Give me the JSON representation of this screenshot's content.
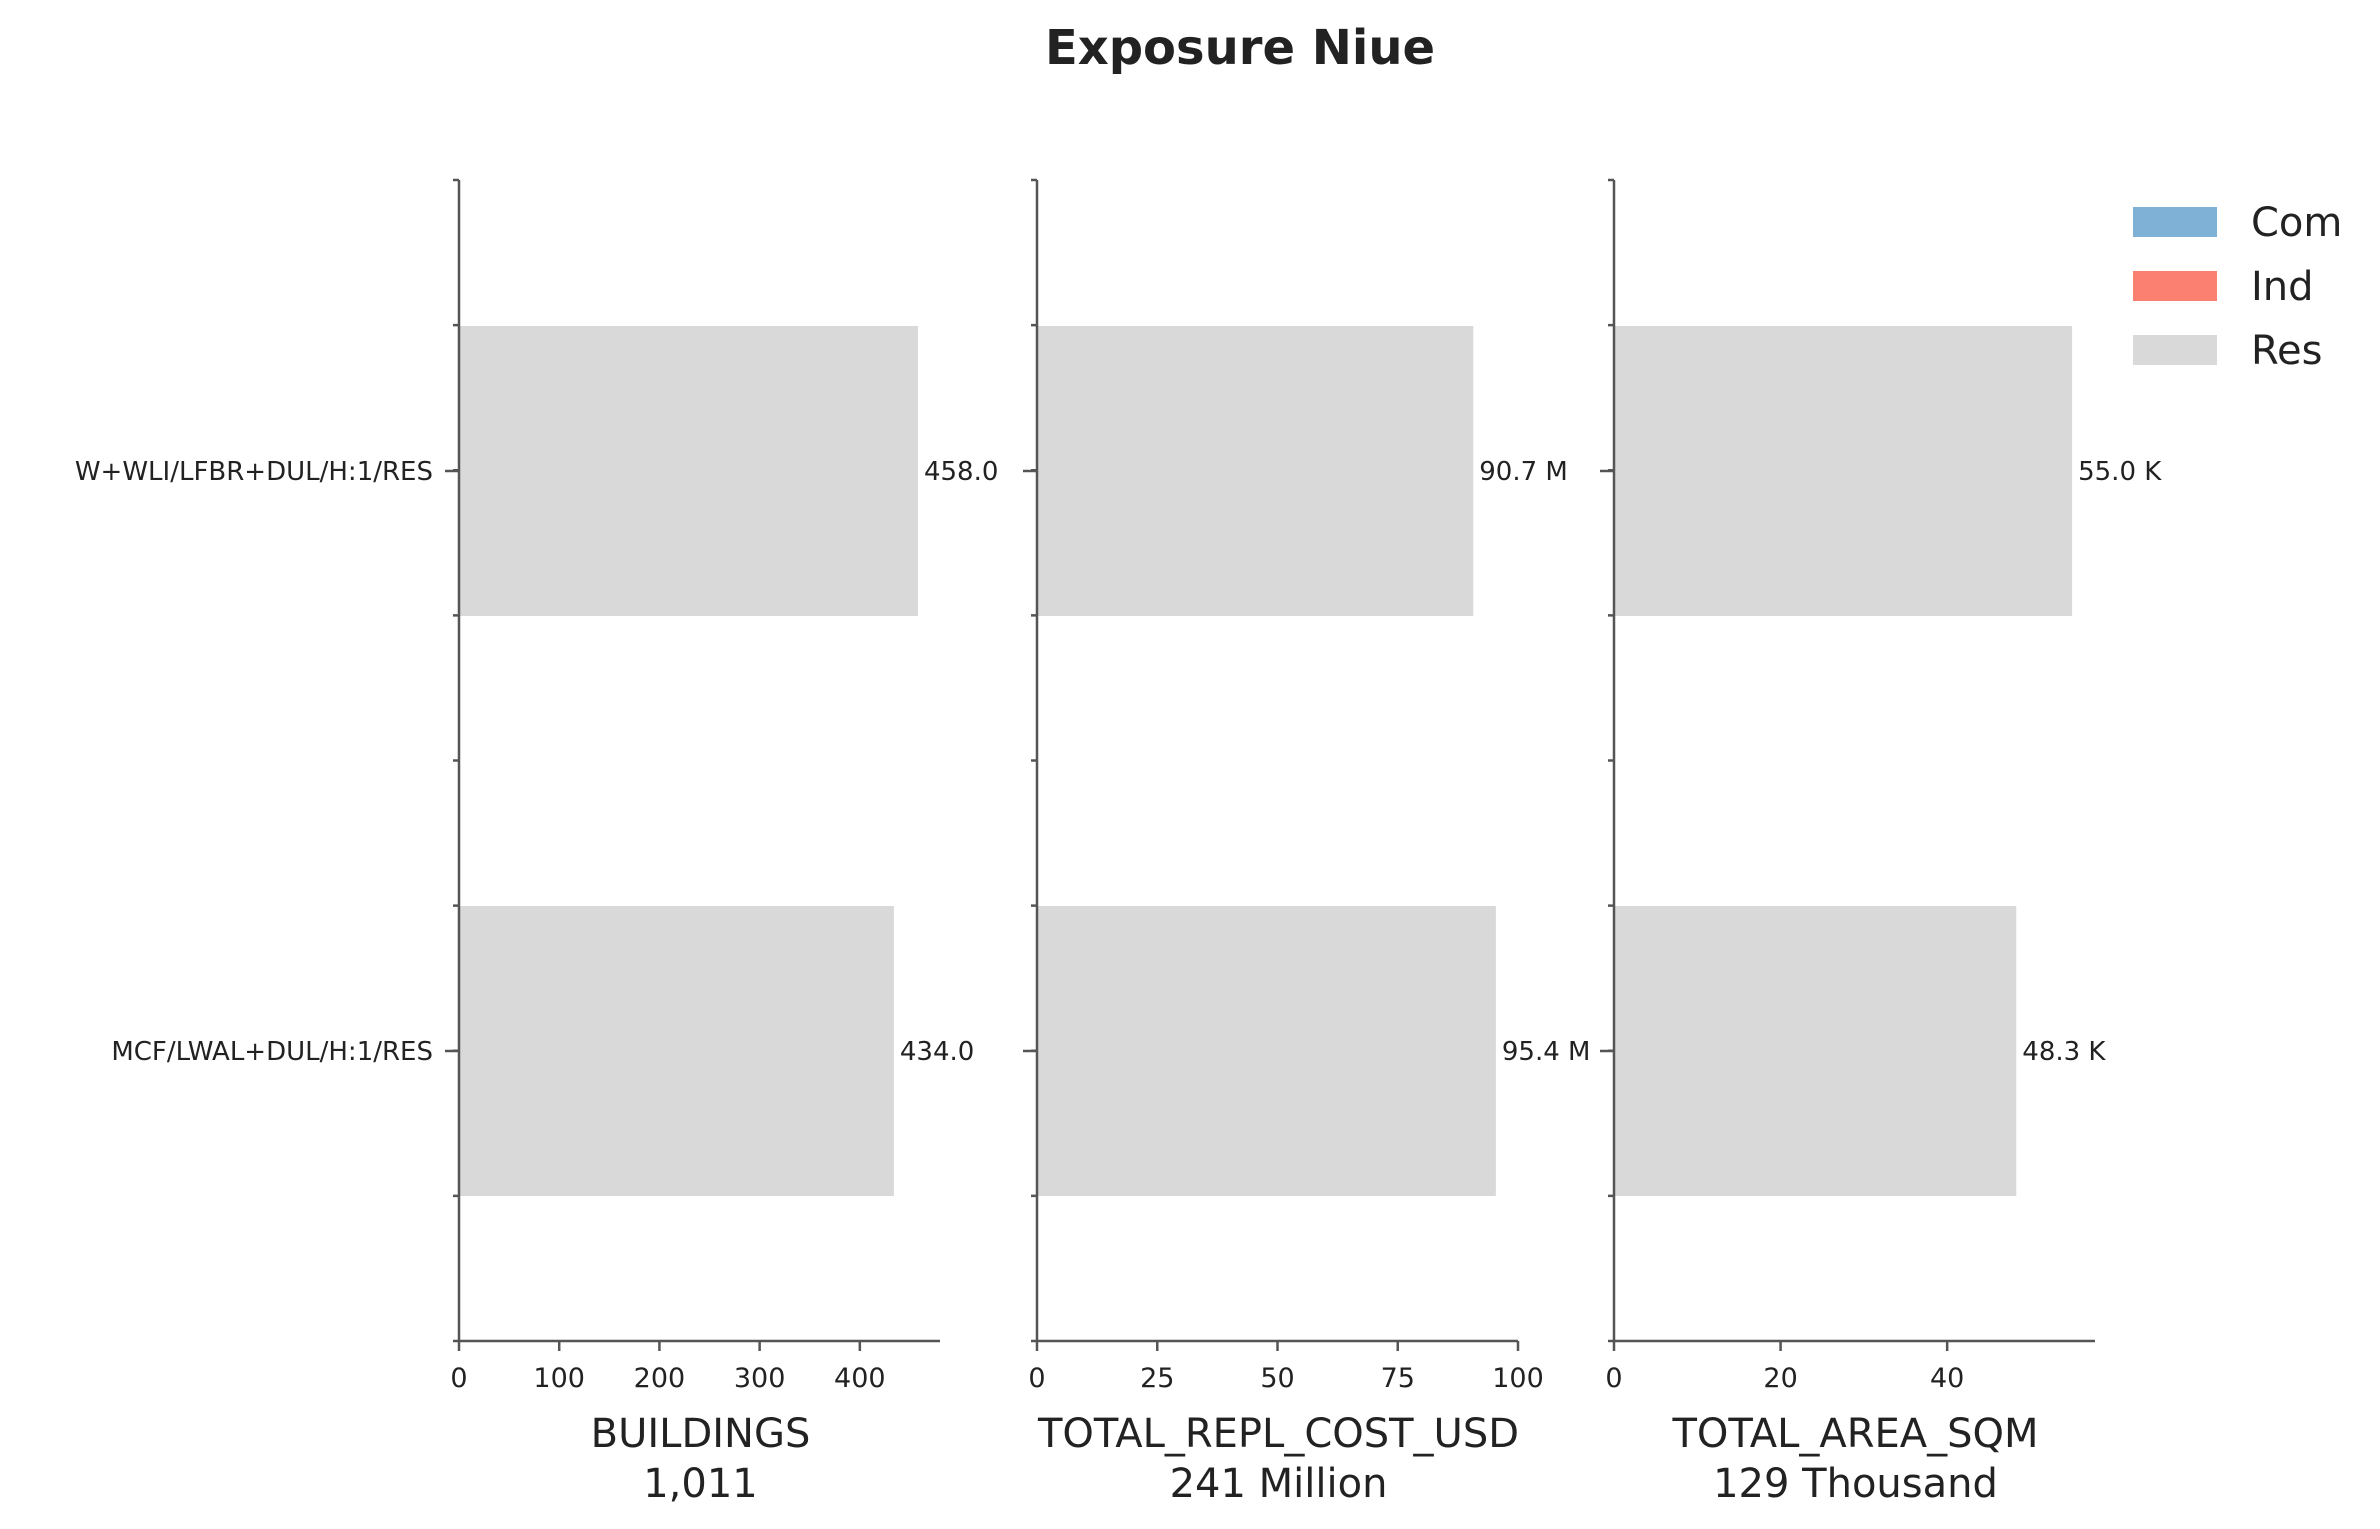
{
  "chart_data": {
    "type": "bar",
    "orientation": "horizontal",
    "title": "Exposure Niue",
    "categories": [
      "W+WLI/LFBR+DUL/H:1/RES",
      "MCF/LWAL+DUL/H:1/RES"
    ],
    "legend": {
      "placement": "top-right",
      "entries": [
        {
          "name": "Com",
          "color": "#7fb0d5"
        },
        {
          "name": "Ind",
          "color": "#fb8072"
        },
        {
          "name": "Res",
          "color": "#d9d9d9"
        }
      ]
    },
    "panels": [
      {
        "xlabel": "BUILDINGS",
        "total_label": "1,011",
        "xlim": [
          0,
          480
        ],
        "xticks": [
          0,
          100,
          200,
          300,
          400
        ],
        "series": [
          {
            "name": "Res",
            "color": "#d9d9d9",
            "values": [
              458.0,
              434.0
            ]
          }
        ],
        "value_labels": [
          "458.0",
          "434.0"
        ]
      },
      {
        "xlabel": "TOTAL_REPL_COST_USD",
        "total_label": "241 Million",
        "xlim": [
          0,
          100
        ],
        "xticks": [
          0,
          25,
          50,
          75,
          100
        ],
        "series": [
          {
            "name": "Res",
            "color": "#d9d9d9",
            "values": [
              90.7,
              95.4
            ]
          }
        ],
        "value_labels": [
          "90.7 M",
          "95.4 M"
        ]
      },
      {
        "xlabel": "TOTAL_AREA_SQM",
        "total_label": "129 Thousand",
        "xlim": [
          0,
          57.75
        ],
        "xticks": [
          0,
          20,
          40
        ],
        "series": [
          {
            "name": "Res",
            "color": "#d9d9d9",
            "values": [
              55.0,
              48.3
            ]
          }
        ],
        "value_labels": [
          "55.0 K",
          "48.3 K"
        ]
      }
    ]
  }
}
